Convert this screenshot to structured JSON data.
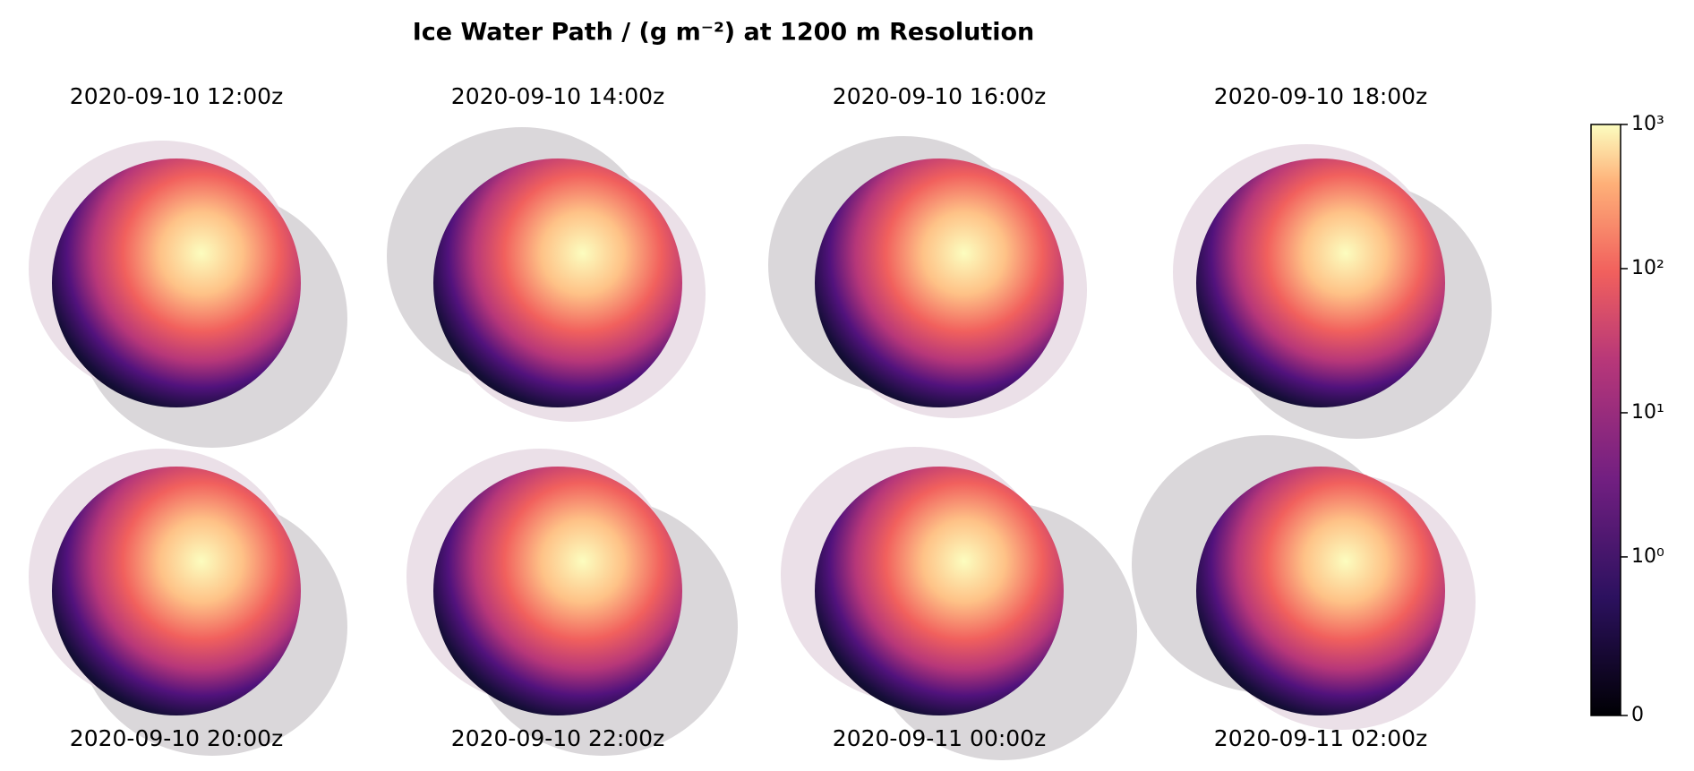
{
  "chart_data": {
    "type": "image-grid",
    "title": "Ice Water Path / (g m⁻²) at 1200 m Resolution",
    "panels": [
      "2020-09-10 12:00z",
      "2020-09-10 14:00z",
      "2020-09-10 16:00z",
      "2020-09-10 18:00z",
      "2020-09-10 20:00z",
      "2020-09-10 22:00z",
      "2020-09-11 00:00z",
      "2020-09-11 02:00z"
    ],
    "colormap": "magma",
    "scale": "symlog",
    "ylim": [
      0,
      1000
    ],
    "yticks": [
      0,
      {
        "value": 1,
        "label": "10⁰"
      },
      {
        "value": 10,
        "label": "10¹"
      },
      {
        "value": 100,
        "label": "10²"
      },
      {
        "value": 1000,
        "label": "10³"
      }
    ]
  }
}
